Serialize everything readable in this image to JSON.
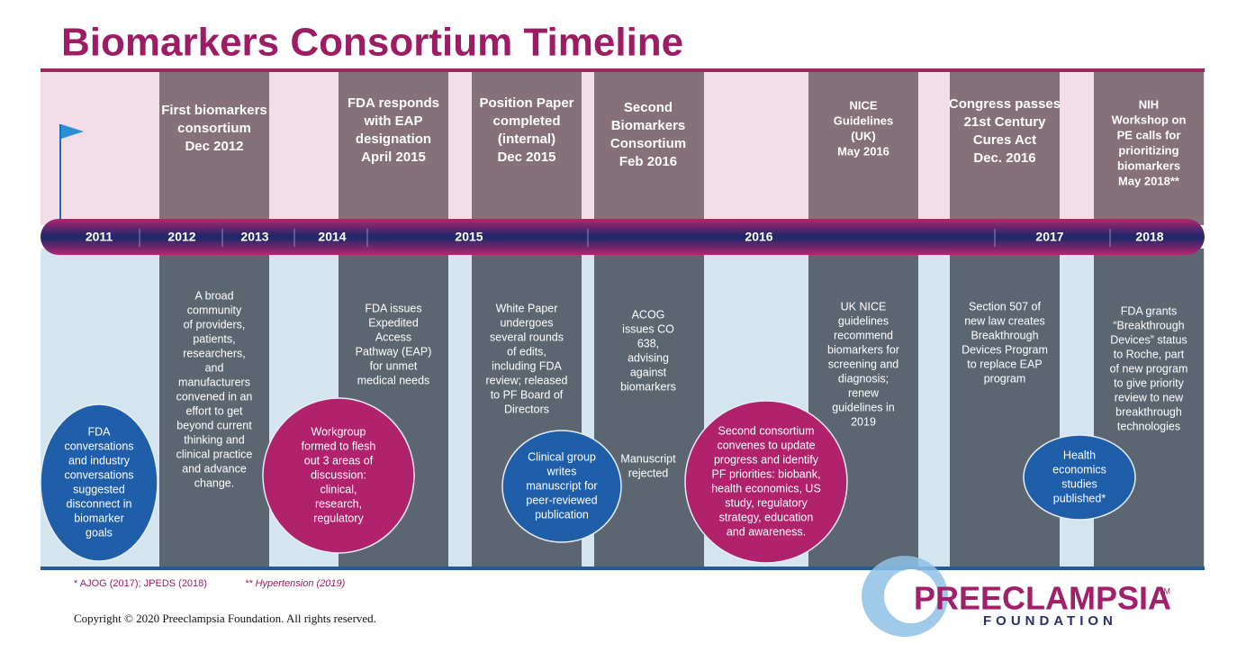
{
  "title": "Biomarkers Consortium Timeline",
  "upper_events": [
    {
      "lines": [
        "First biomarkers",
        "consortium",
        "Dec 2012"
      ]
    },
    {
      "lines": [
        "FDA responds",
        "with EAP",
        "designation",
        "April 2015"
      ]
    },
    {
      "lines": [
        "Position Paper",
        "completed",
        "(internal)",
        "Dec 2015"
      ]
    },
    {
      "lines": [
        "Second",
        "Biomarkers",
        "Consortium",
        "Feb 2016"
      ]
    },
    {
      "lines": [
        "NICE",
        "Guidelines",
        "(UK)",
        "May 2016"
      ]
    },
    {
      "lines": [
        "Congress passes",
        "21st Century",
        "Cures Act",
        "Dec. 2016"
      ]
    },
    {
      "lines": [
        "NIH",
        "Workshop on",
        "PE calls for",
        "prioritizing",
        "biomarkers",
        "May 2018**"
      ]
    }
  ],
  "years": [
    "2011",
    "2012",
    "2013",
    "2014",
    "2015",
    "2016",
    "2017",
    "2018"
  ],
  "lower_events": [
    {
      "lines": [
        "A broad",
        "community",
        "of providers,",
        "patients,",
        "researchers,",
        "and",
        "manufacturers",
        "convened in an",
        "effort to get",
        "beyond current",
        "thinking and",
        "clinical practice",
        "and advance",
        "change."
      ]
    },
    {
      "lines": [
        "FDA issues",
        "Expedited",
        "Access",
        "Pathway (EAP)",
        "for unmet",
        "medical needs"
      ]
    },
    {
      "lines": [
        "White Paper",
        "undergoes",
        "several rounds",
        "of edits,",
        "including FDA",
        "review; released",
        "to PF Board of",
        "Directors"
      ]
    },
    {
      "lines": [
        "ACOG",
        "issues CO",
        "638,",
        "advising",
        "against",
        "biomarkers"
      ]
    },
    {
      "lines": [
        "Manuscript",
        "rejected"
      ]
    },
    {
      "lines": [
        "UK NICE",
        "guidelines",
        "recommend",
        "biomarkers for",
        "screening and",
        "diagnosis;",
        "renew",
        "guidelines in",
        "2019"
      ]
    },
    {
      "lines": [
        "Section 507 of",
        "new law creates",
        "Breakthrough",
        "Devices Program",
        "to replace EAP",
        "program"
      ]
    },
    {
      "lines": [
        "FDA grants",
        "“Breakthrough",
        "Devices” status",
        "to Roche, part",
        "of new program",
        "to give priority",
        "review to new",
        "breakthrough",
        "technologies"
      ]
    }
  ],
  "circles": [
    {
      "lines": [
        "FDA",
        "conversations",
        "and industry",
        "conversations",
        "suggested",
        "disconnect in",
        "biomarker",
        "goals"
      ]
    },
    {
      "lines": [
        "Workgroup",
        "formed to flesh",
        "out 3 areas of",
        "discussion:",
        "clinical,",
        "research,",
        "regulatory"
      ]
    },
    {
      "lines": [
        "Clinical group",
        "writes",
        "manuscript for",
        "peer-reviewed",
        "publication"
      ]
    },
    {
      "lines": [
        "Second consortium",
        "convenes to update",
        "progress and identify",
        "PF priorities: biobank,",
        "health economics, US",
        "study, regulatory",
        "strategy, education",
        "and awareness."
      ]
    },
    {
      "lines": [
        "Health",
        "economics",
        "studies",
        "published*"
      ]
    }
  ],
  "footnotes": [
    "* AJOG (2017); JPEDS (2018)",
    "** Hypertension (2019)"
  ],
  "copyright": "Copyright © 2020 Preeclampsia Foundation. All rights reserved.",
  "logo": {
    "name": "PREECLAMPSIA",
    "trademark": "TM",
    "subtitle": "FOUNDATION"
  }
}
